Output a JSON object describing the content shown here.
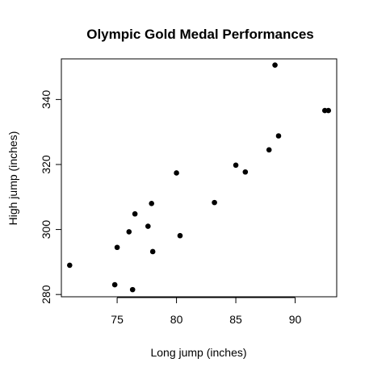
{
  "chart_data": {
    "type": "scatter",
    "title": "Olympic Gold Medal Performances",
    "xlabel": "Long jump (inches)",
    "ylabel": "High jump (inches)",
    "xlim": [
      70.3,
      93.5
    ],
    "ylim": [
      279.3,
      352.5
    ],
    "xticks": [
      75,
      80,
      85,
      90
    ],
    "yticks": [
      280,
      300,
      320,
      340
    ],
    "grid": false,
    "points": [
      {
        "x": 71.0,
        "y": 289.0
      },
      {
        "x": 74.8,
        "y": 283.0
      },
      {
        "x": 75.0,
        "y": 294.5
      },
      {
        "x": 76.0,
        "y": 299.3
      },
      {
        "x": 76.3,
        "y": 281.5
      },
      {
        "x": 76.5,
        "y": 304.8
      },
      {
        "x": 77.6,
        "y": 301.0
      },
      {
        "x": 77.9,
        "y": 308.0
      },
      {
        "x": 78.0,
        "y": 293.2
      },
      {
        "x": 80.0,
        "y": 317.4
      },
      {
        "x": 80.3,
        "y": 298.1
      },
      {
        "x": 83.2,
        "y": 308.3
      },
      {
        "x": 85.0,
        "y": 319.8
      },
      {
        "x": 85.8,
        "y": 317.7
      },
      {
        "x": 87.8,
        "y": 324.5
      },
      {
        "x": 88.3,
        "y": 350.6
      },
      {
        "x": 88.6,
        "y": 328.8
      },
      {
        "x": 92.5,
        "y": 336.6
      },
      {
        "x": 92.8,
        "y": 336.6
      }
    ]
  }
}
